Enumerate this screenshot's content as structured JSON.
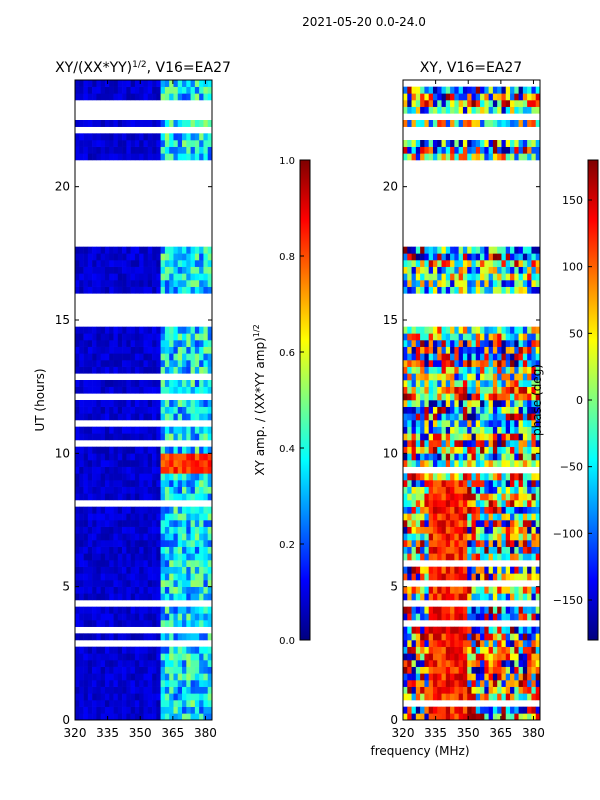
{
  "suptitle": "2021-05-20 0.0-24.0",
  "xlabel_shared": "frequency (MHz)",
  "colors": {
    "jet": [
      "#00007f",
      "#0000ff",
      "#007fff",
      "#00ffff",
      "#7fff7f",
      "#ffff00",
      "#ff7f00",
      "#ff0000",
      "#7f0000"
    ]
  },
  "chart_data": [
    {
      "type": "heatmap",
      "title": "XY/(XX*YY)",
      "title_sup": "1/2",
      "title_suffix": ", V16=EA27",
      "xlabel": "",
      "ylabel": "UT (hours)",
      "xlim": [
        320,
        383
      ],
      "ylim": [
        0,
        24
      ],
      "xticks": [
        320,
        335,
        350,
        365,
        380
      ],
      "yticks": [
        0,
        5,
        10,
        15,
        20
      ],
      "colorbar": {
        "label": "XY amp. / (XX*YY amp)",
        "label_sup": "1/2",
        "range": [
          0.0,
          1.0
        ],
        "ticks": [
          "0.0",
          "0.2",
          "0.4",
          "0.6",
          "0.8",
          "1.0"
        ]
      },
      "gap_bands_hours": [
        [
          17.7,
          21.0
        ],
        [
          14.8,
          16.0
        ],
        [
          22.4,
          22.7
        ]
      ],
      "active_band_mhz": [
        360,
        383
      ],
      "bright_feature": {
        "ut_hours": [
          9.2,
          9.9
        ],
        "mhz": [
          360,
          383
        ],
        "value": 0.9
      }
    },
    {
      "type": "heatmap",
      "title": "XY, V16=EA27",
      "xlabel": "frequency (MHz)",
      "ylabel": "",
      "xlim": [
        320,
        383
      ],
      "ylim": [
        0,
        24
      ],
      "xticks": [
        320,
        335,
        350,
        365,
        380
      ],
      "yticks": [
        0,
        5,
        10,
        15,
        20
      ],
      "colorbar": {
        "label": "phase (deg)",
        "range": [
          -180,
          180
        ],
        "ticks": [
          "−150",
          "−100",
          "−50",
          "0",
          "50",
          "100",
          "150"
        ]
      },
      "gap_bands_hours": [
        [
          17.7,
          21.0
        ],
        [
          14.8,
          16.0
        ],
        [
          22.4,
          22.7
        ]
      ]
    }
  ]
}
